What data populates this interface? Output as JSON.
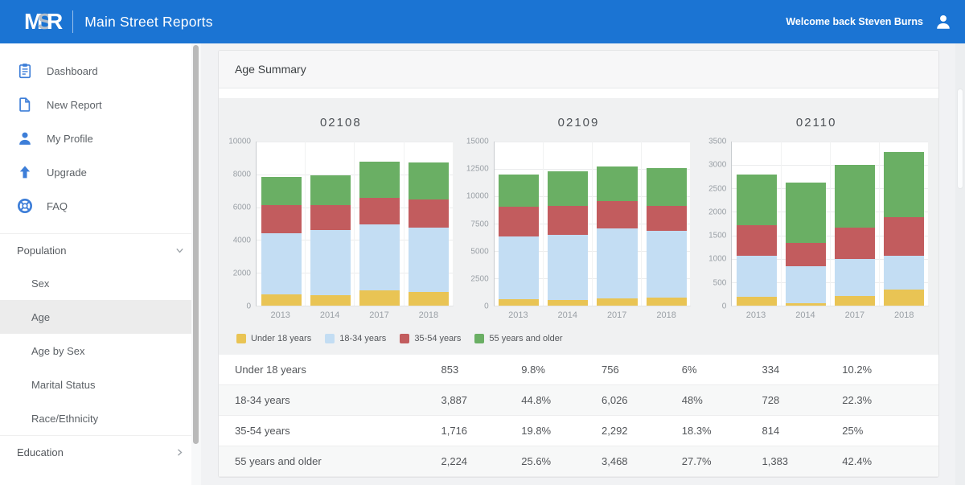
{
  "header": {
    "logo": "MSR",
    "app_title": "Main Street Reports",
    "welcome": "Welcome back Steven Burns"
  },
  "sidebar": {
    "items": [
      {
        "label": "Dashboard",
        "icon": "clipboard-icon"
      },
      {
        "label": "New Report",
        "icon": "document-icon"
      },
      {
        "label": "My Profile",
        "icon": "person-icon"
      },
      {
        "label": "Upgrade",
        "icon": "arrow-up-icon"
      },
      {
        "label": "FAQ",
        "icon": "life-ring-icon"
      }
    ],
    "sections": [
      {
        "label": "Population",
        "state": "expanded",
        "children": [
          "Sex",
          "Age",
          "Age by Sex",
          "Marital Status",
          "Race/Ethnicity"
        ],
        "selected": "Age"
      },
      {
        "label": "Education",
        "state": "collapsed",
        "children": []
      }
    ]
  },
  "main": {
    "card_title": "Age Summary"
  },
  "colors": {
    "header_blue": "#1b74d3",
    "icon_blue": "#3d7ed8",
    "under18": "#e9c454",
    "age18_34": "#c3ddf3",
    "age35_54": "#c25c5e",
    "age55": "#6aaf64",
    "selected_item_bg": "#ececec"
  },
  "legend": [
    {
      "label": "Under 18 years",
      "color": "#e9c454"
    },
    {
      "label": "18-34 years",
      "color": "#c3ddf3"
    },
    {
      "label": "35-54 years",
      "color": "#c25c5e"
    },
    {
      "label": "55 years and older",
      "color": "#6aaf64"
    }
  ],
  "chart_data": [
    {
      "type": "bar",
      "stacked": true,
      "title": "02108",
      "categories": [
        "2013",
        "2014",
        "2017",
        "2018"
      ],
      "ylim": [
        0,
        10000
      ],
      "yticks": [
        0,
        2000,
        4000,
        6000,
        8000,
        10000
      ],
      "grid": true,
      "legend_position": "bottom-left",
      "series": [
        {
          "name": "Under 18 years",
          "color": "#e9c454",
          "values": [
            700,
            650,
            950,
            853
          ]
        },
        {
          "name": "18-34 years",
          "color": "#c3ddf3",
          "values": [
            3700,
            3950,
            4000,
            3887
          ]
        },
        {
          "name": "35-54 years",
          "color": "#c25c5e",
          "values": [
            1700,
            1500,
            1600,
            1716
          ]
        },
        {
          "name": "55 years and older",
          "color": "#6aaf64",
          "values": [
            1700,
            1800,
            2200,
            2224
          ]
        }
      ]
    },
    {
      "type": "bar",
      "stacked": true,
      "title": "02109",
      "categories": [
        "2013",
        "2014",
        "2017",
        "2018"
      ],
      "ylim": [
        0,
        15000
      ],
      "yticks": [
        0,
        2500,
        5000,
        7500,
        10000,
        12500,
        15000
      ],
      "grid": true,
      "legend_position": "bottom-left",
      "series": [
        {
          "name": "Under 18 years",
          "color": "#e9c454",
          "values": [
            550,
            500,
            650,
            756
          ]
        },
        {
          "name": "18-34 years",
          "color": "#c3ddf3",
          "values": [
            5750,
            5950,
            6400,
            6026
          ]
        },
        {
          "name": "35-54 years",
          "color": "#c25c5e",
          "values": [
            2700,
            2600,
            2450,
            2292
          ]
        },
        {
          "name": "55 years and older",
          "color": "#6aaf64",
          "values": [
            2900,
            3200,
            3150,
            3468
          ]
        }
      ]
    },
    {
      "type": "bar",
      "stacked": true,
      "title": "02110",
      "categories": [
        "2013",
        "2014",
        "2017",
        "2018"
      ],
      "ylim": [
        0,
        3500
      ],
      "yticks": [
        0,
        500,
        1000,
        1500,
        2000,
        2500,
        3000,
        3500
      ],
      "grid": true,
      "legend_position": "bottom-left",
      "series": [
        {
          "name": "Under 18 years",
          "color": "#e9c454",
          "values": [
            180,
            60,
            210,
            334
          ]
        },
        {
          "name": "18-34 years",
          "color": "#c3ddf3",
          "values": [
            880,
            780,
            780,
            728
          ]
        },
        {
          "name": "35-54 years",
          "color": "#c25c5e",
          "values": [
            640,
            500,
            660,
            814
          ]
        },
        {
          "name": "55 years and older",
          "color": "#6aaf64",
          "values": [
            1090,
            1280,
            1340,
            1383
          ]
        }
      ]
    }
  ],
  "table": {
    "rows": [
      {
        "label": "Under 18 years",
        "values": [
          "853",
          "9.8%",
          "756",
          "6%",
          "334",
          "10.2%"
        ]
      },
      {
        "label": "18-34 years",
        "values": [
          "3,887",
          "44.8%",
          "6,026",
          "48%",
          "728",
          "22.3%"
        ]
      },
      {
        "label": "35-54 years",
        "values": [
          "1,716",
          "19.8%",
          "2,292",
          "18.3%",
          "814",
          "25%"
        ]
      },
      {
        "label": "55 years and older",
        "values": [
          "2,224",
          "25.6%",
          "3,468",
          "27.7%",
          "1,383",
          "42.4%"
        ]
      }
    ]
  }
}
